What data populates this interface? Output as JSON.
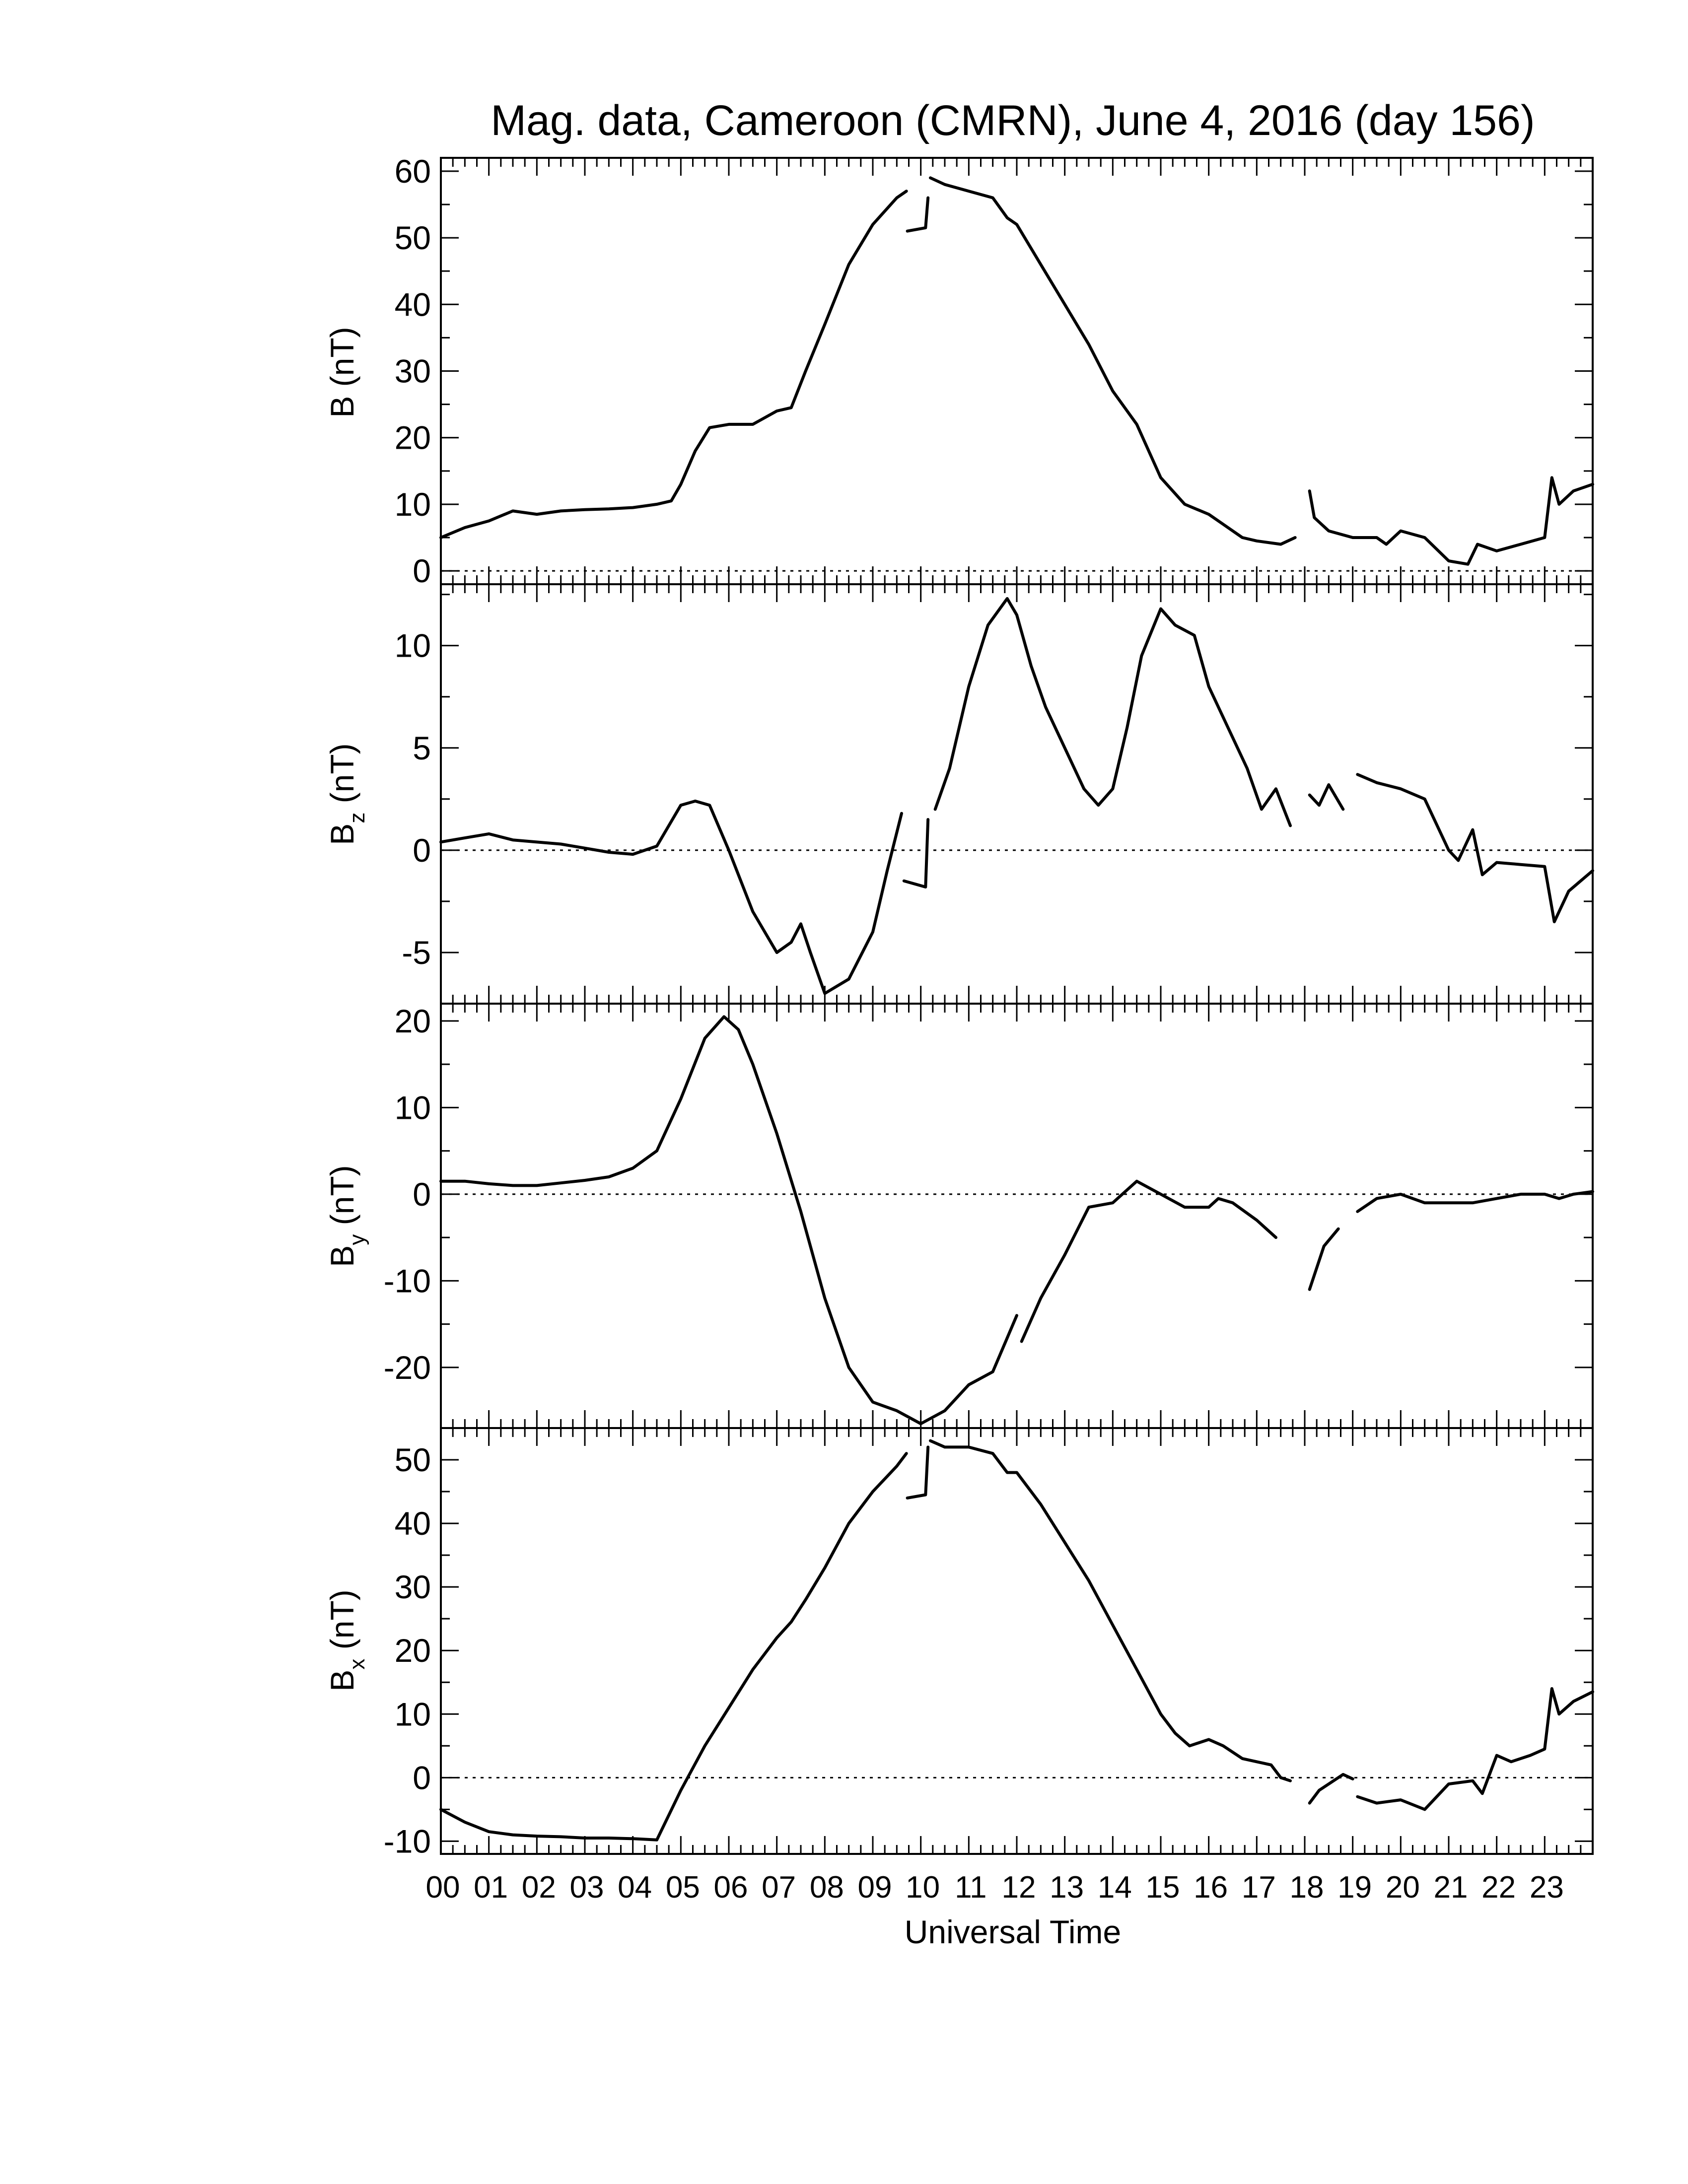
{
  "title": "Mag. data, Cameroon (CMRN), June 4, 2016 (day 156)",
  "x_axis_label": "Universal Time",
  "x_tick_labels": [
    "00",
    "01",
    "02",
    "03",
    "04",
    "05",
    "06",
    "07",
    "08",
    "09",
    "10",
    "11",
    "12",
    "13",
    "14",
    "15",
    "16",
    "17",
    "18",
    "19",
    "20",
    "21",
    "22",
    "23"
  ],
  "panel_labels": {
    "B": {
      "main": "B (nT)",
      "sub": ""
    },
    "Bz": {
      "main": "B",
      "sub": "z",
      "unit": " (nT)"
    },
    "By": {
      "main": "B",
      "sub": "y",
      "unit": " (nT)"
    },
    "Bx": {
      "main": "B",
      "sub": "x",
      "unit": " (nT)"
    }
  },
  "chart_data": [
    {
      "type": "line",
      "name": "B",
      "ylabel": "B (nT)",
      "xlabel": "",
      "xlim": [
        0,
        24
      ],
      "ylim": [
        -2,
        62
      ],
      "yticks": [
        0,
        10,
        20,
        30,
        40,
        50,
        60
      ],
      "zero_line": true,
      "segments": [
        [
          [
            0,
            5
          ],
          [
            0.5,
            6.5
          ],
          [
            1,
            7.5
          ],
          [
            1.5,
            9
          ],
          [
            2,
            8.5
          ],
          [
            2.5,
            9
          ],
          [
            3,
            9.2
          ],
          [
            3.5,
            9.3
          ],
          [
            4,
            9.5
          ],
          [
            4.5,
            10
          ],
          [
            4.8,
            10.5
          ],
          [
            5,
            13
          ],
          [
            5.3,
            18
          ],
          [
            5.6,
            21.5
          ],
          [
            6,
            22
          ],
          [
            6.5,
            22
          ],
          [
            7,
            24
          ],
          [
            7.3,
            24.5
          ],
          [
            7.6,
            30
          ],
          [
            8,
            37
          ],
          [
            8.5,
            46
          ],
          [
            9,
            52
          ],
          [
            9.5,
            56
          ],
          [
            9.7,
            57
          ]
        ],
        [
          [
            9.72,
            51
          ],
          [
            10.1,
            51.5
          ],
          [
            10.15,
            56
          ]
        ],
        [
          [
            10.2,
            59
          ],
          [
            10.5,
            58
          ],
          [
            11,
            57
          ],
          [
            11.5,
            56
          ],
          [
            11.8,
            53
          ],
          [
            12,
            52
          ],
          [
            12.5,
            46
          ],
          [
            13,
            40
          ],
          [
            13.5,
            34
          ],
          [
            14,
            27
          ],
          [
            14.5,
            22
          ],
          [
            15,
            14
          ],
          [
            15.5,
            10
          ],
          [
            16,
            8.5
          ],
          [
            16.3,
            7
          ],
          [
            16.7,
            5
          ],
          [
            17,
            4.5
          ],
          [
            17.5,
            4
          ],
          [
            17.8,
            5
          ]
        ],
        [
          [
            18.1,
            12
          ],
          [
            18.2,
            8
          ],
          [
            18.5,
            6
          ],
          [
            19,
            5
          ],
          [
            19.5,
            5
          ],
          [
            19.7,
            4
          ],
          [
            20,
            6
          ],
          [
            20.5,
            5
          ],
          [
            21,
            1.5
          ],
          [
            21.4,
            1
          ],
          [
            21.6,
            4
          ],
          [
            22,
            3
          ],
          [
            22.5,
            4
          ],
          [
            23,
            5
          ],
          [
            23.15,
            14
          ],
          [
            23.3,
            10
          ],
          [
            23.6,
            12
          ],
          [
            24,
            13
          ]
        ]
      ]
    },
    {
      "type": "line",
      "name": "Bz",
      "ylabel": "Bz (nT)",
      "xlabel": "",
      "xlim": [
        0,
        24
      ],
      "ylim": [
        -7.5,
        13
      ],
      "yticks": [
        -5,
        0,
        5,
        10
      ],
      "zero_line": true,
      "segments": [
        [
          [
            0,
            0.4
          ],
          [
            0.5,
            0.6
          ],
          [
            1,
            0.8
          ],
          [
            1.5,
            0.5
          ],
          [
            2,
            0.4
          ],
          [
            2.5,
            0.3
          ],
          [
            3,
            0.1
          ],
          [
            3.5,
            -0.1
          ],
          [
            4,
            -0.2
          ],
          [
            4.5,
            0.2
          ],
          [
            5,
            2.2
          ],
          [
            5.3,
            2.4
          ],
          [
            5.6,
            2.2
          ],
          [
            6,
            0
          ],
          [
            6.5,
            -3
          ],
          [
            7,
            -5
          ],
          [
            7.3,
            -4.5
          ],
          [
            7.5,
            -3.6
          ],
          [
            7.7,
            -5
          ],
          [
            8,
            -7
          ],
          [
            8.5,
            -6.3
          ],
          [
            9,
            -4
          ],
          [
            9.3,
            -1
          ],
          [
            9.6,
            1.8
          ]
        ],
        [
          [
            9.65,
            -1.5
          ],
          [
            10.1,
            -1.8
          ],
          [
            10.15,
            1.5
          ]
        ],
        [
          [
            10.3,
            2
          ],
          [
            10.6,
            4
          ],
          [
            11,
            8
          ],
          [
            11.4,
            11
          ],
          [
            11.8,
            12.3
          ],
          [
            12,
            11.5
          ],
          [
            12.3,
            9
          ],
          [
            12.6,
            7
          ],
          [
            13,
            5
          ],
          [
            13.4,
            3
          ],
          [
            13.7,
            2.2
          ],
          [
            14,
            3
          ],
          [
            14.3,
            6
          ],
          [
            14.6,
            9.5
          ],
          [
            15,
            11.8
          ],
          [
            15.3,
            11
          ],
          [
            15.7,
            10.5
          ],
          [
            16,
            8
          ],
          [
            16.4,
            6
          ],
          [
            16.8,
            4
          ],
          [
            17.1,
            2
          ],
          [
            17.4,
            3
          ],
          [
            17.7,
            1.2
          ]
        ],
        [
          [
            18.1,
            2.7
          ],
          [
            18.3,
            2.2
          ],
          [
            18.5,
            3.2
          ],
          [
            18.8,
            2
          ]
        ],
        [
          [
            19.1,
            3.7
          ],
          [
            19.5,
            3.3
          ],
          [
            20,
            3
          ],
          [
            20.5,
            2.5
          ],
          [
            21,
            0
          ],
          [
            21.2,
            -0.5
          ],
          [
            21.5,
            1
          ],
          [
            21.7,
            -1.2
          ],
          [
            22,
            -0.6
          ],
          [
            22.5,
            -0.7
          ],
          [
            23,
            -0.8
          ],
          [
            23.2,
            -3.5
          ],
          [
            23.5,
            -2
          ],
          [
            24,
            -1
          ]
        ]
      ]
    },
    {
      "type": "line",
      "name": "By",
      "ylabel": "By (nT)",
      "xlabel": "",
      "xlim": [
        0,
        24
      ],
      "ylim": [
        -27,
        22
      ],
      "yticks": [
        -20,
        -10,
        0,
        10,
        20
      ],
      "zero_line": true,
      "segments": [
        [
          [
            0,
            1.5
          ],
          [
            0.5,
            1.5
          ],
          [
            1,
            1.2
          ],
          [
            1.5,
            1
          ],
          [
            2,
            1
          ],
          [
            2.5,
            1.3
          ],
          [
            3,
            1.6
          ],
          [
            3.5,
            2
          ],
          [
            4,
            3
          ],
          [
            4.5,
            5
          ],
          [
            5,
            11
          ],
          [
            5.5,
            18
          ],
          [
            5.9,
            20.5
          ],
          [
            6.2,
            19
          ],
          [
            6.5,
            15
          ],
          [
            7,
            7
          ],
          [
            7.5,
            -2
          ],
          [
            8,
            -12
          ],
          [
            8.5,
            -20
          ],
          [
            9,
            -24
          ],
          [
            9.5,
            -25
          ],
          [
            10,
            -26.5
          ],
          [
            10.5,
            -25
          ],
          [
            11,
            -22
          ],
          [
            11.5,
            -20.5
          ],
          [
            12,
            -14
          ]
        ],
        [
          [
            12.1,
            -17
          ],
          [
            12.5,
            -12
          ],
          [
            13,
            -7
          ],
          [
            13.5,
            -1.5
          ],
          [
            14,
            -1
          ],
          [
            14.5,
            1.5
          ],
          [
            15,
            0
          ],
          [
            15.5,
            -1.5
          ],
          [
            16,
            -1.5
          ],
          [
            16.2,
            -0.5
          ],
          [
            16.5,
            -1
          ],
          [
            17,
            -3
          ],
          [
            17.4,
            -5
          ]
        ],
        [
          [
            18.1,
            -11
          ],
          [
            18.4,
            -6
          ],
          [
            18.7,
            -4
          ]
        ],
        [
          [
            19.1,
            -2
          ],
          [
            19.5,
            -0.5
          ],
          [
            20,
            0
          ],
          [
            20.5,
            -1
          ],
          [
            21,
            -1
          ],
          [
            21.5,
            -1
          ],
          [
            22,
            -0.5
          ],
          [
            22.5,
            0
          ],
          [
            23,
            0
          ],
          [
            23.3,
            -0.5
          ],
          [
            23.6,
            0
          ],
          [
            24,
            0.3
          ]
        ]
      ]
    },
    {
      "type": "line",
      "name": "Bx",
      "ylabel": "Bx (nT)",
      "xlabel": "Universal Time",
      "xlim": [
        0,
        24
      ],
      "ylim": [
        -12,
        55
      ],
      "yticks": [
        -10,
        0,
        10,
        20,
        30,
        40,
        50
      ],
      "zero_line": true,
      "segments": [
        [
          [
            0,
            -5
          ],
          [
            0.5,
            -7
          ],
          [
            1,
            -8.5
          ],
          [
            1.5,
            -9
          ],
          [
            2,
            -9.2
          ],
          [
            2.5,
            -9.3
          ],
          [
            3,
            -9.5
          ],
          [
            3.5,
            -9.5
          ],
          [
            4,
            -9.6
          ],
          [
            4.5,
            -9.8
          ],
          [
            5,
            -2
          ],
          [
            5.5,
            5
          ],
          [
            6,
            11
          ],
          [
            6.5,
            17
          ],
          [
            7,
            22
          ],
          [
            7.3,
            24.5
          ],
          [
            7.6,
            28
          ],
          [
            8,
            33
          ],
          [
            8.5,
            40
          ],
          [
            9,
            45
          ],
          [
            9.5,
            49
          ],
          [
            9.7,
            51
          ]
        ],
        [
          [
            9.72,
            44
          ],
          [
            10.1,
            44.5
          ],
          [
            10.15,
            52
          ]
        ],
        [
          [
            10.2,
            53
          ],
          [
            10.5,
            52
          ],
          [
            11,
            52
          ],
          [
            11.5,
            51
          ],
          [
            11.8,
            48
          ],
          [
            12,
            48
          ],
          [
            12.5,
            43
          ],
          [
            13,
            37
          ],
          [
            13.5,
            31
          ],
          [
            14,
            24
          ],
          [
            14.5,
            17
          ],
          [
            15,
            10
          ],
          [
            15.3,
            7
          ],
          [
            15.6,
            5
          ],
          [
            16,
            6
          ],
          [
            16.3,
            5
          ],
          [
            16.7,
            3
          ],
          [
            17,
            2.5
          ],
          [
            17.3,
            2
          ],
          [
            17.5,
            0
          ],
          [
            17.7,
            -0.5
          ]
        ],
        [
          [
            18.1,
            -4
          ],
          [
            18.3,
            -2
          ],
          [
            18.5,
            -1
          ],
          [
            18.8,
            0.5
          ],
          [
            19,
            -0.2
          ]
        ],
        [
          [
            19.1,
            -3
          ],
          [
            19.5,
            -4
          ],
          [
            20,
            -3.5
          ],
          [
            20.5,
            -5
          ],
          [
            21,
            -1
          ],
          [
            21.5,
            -0.5
          ],
          [
            21.7,
            -2.5
          ],
          [
            22,
            3.5
          ],
          [
            22.3,
            2.5
          ],
          [
            22.7,
            3.5
          ],
          [
            23,
            4.5
          ],
          [
            23.15,
            14
          ],
          [
            23.3,
            10
          ],
          [
            23.6,
            12
          ],
          [
            24,
            13.5
          ]
        ]
      ]
    }
  ]
}
